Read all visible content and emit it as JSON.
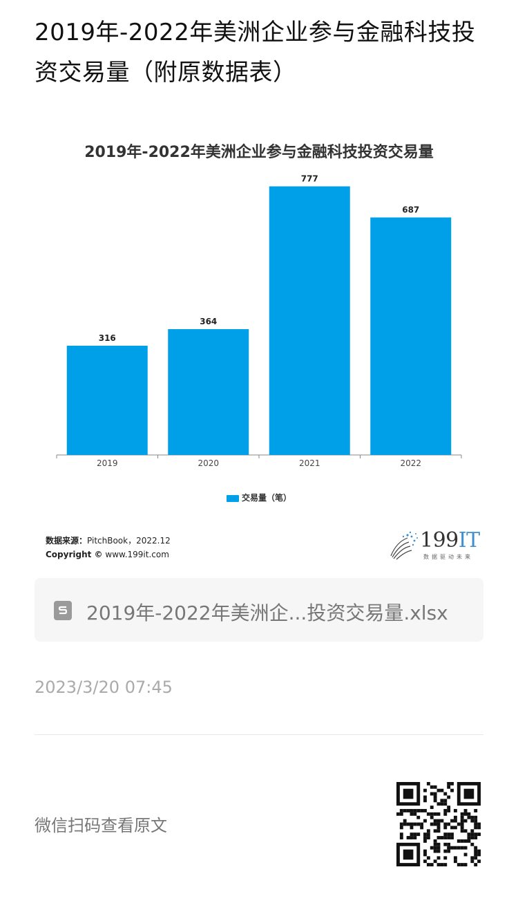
{
  "page": {
    "title": "2019年-2022年美洲企业参与金融科技投资交易量（附原数据表）"
  },
  "chart_data": {
    "type": "bar",
    "title": "2019年-2022年美洲企业参与金融科技投资交易量",
    "categories": [
      "2019",
      "2020",
      "2021",
      "2022"
    ],
    "series": [
      {
        "name": "交易量（笔）",
        "values": [
          316,
          364,
          777,
          687
        ]
      }
    ],
    "xlabel": "",
    "ylabel": "",
    "ylim": [
      0,
      800
    ],
    "data_labels": [
      "316",
      "364",
      "777",
      "687"
    ],
    "grid": false,
    "legend_position": "bottom-center",
    "bar_color": "#00a0e9"
  },
  "source": {
    "label": "数据来源：",
    "value": "PitchBook，2022.12",
    "copyright_label": "Copyright ©",
    "copyright_value": "www.199it.com"
  },
  "logo": {
    "number": "199",
    "suffix": "IT",
    "tagline": "数据驱动未来"
  },
  "attachment": {
    "file_name": "2019年-2022年美洲企...投资交易量.xlsx",
    "icon": "spreadsheet-file-icon"
  },
  "meta": {
    "timestamp": "2023/3/20 07:45",
    "scan_text": "微信扫码查看原文"
  }
}
